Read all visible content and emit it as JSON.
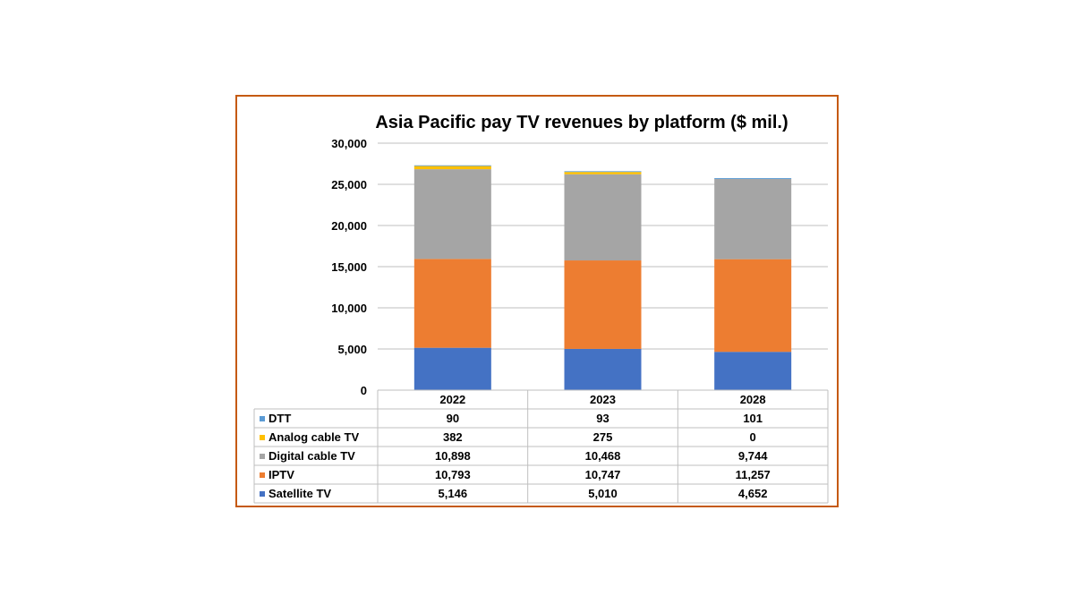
{
  "chart_data": {
    "type": "bar",
    "stacked": true,
    "title": "Asia Pacific pay TV revenues by platform ($ mil.)",
    "categories": [
      "2022",
      "2023",
      "2028"
    ],
    "y_ticks": [
      "30,000",
      "25,000",
      "20,000",
      "15,000",
      "10,000",
      "5,000",
      "0"
    ],
    "ylim": [
      0,
      30000
    ],
    "grid": true,
    "legend": "data-table",
    "series": [
      {
        "name": "Satellite TV",
        "color": "#4472c4",
        "values": [
          5146,
          5010,
          4652
        ],
        "labels": [
          "5,146",
          "5,010",
          "4,652"
        ]
      },
      {
        "name": "IPTV",
        "color": "#ed7d31",
        "values": [
          10793,
          10747,
          11257
        ],
        "labels": [
          "10,793",
          "10,747",
          "11,257"
        ]
      },
      {
        "name": "Digital cable TV",
        "color": "#a5a5a5",
        "values": [
          10898,
          10468,
          9744
        ],
        "labels": [
          "10,898",
          "10,468",
          "9,744"
        ]
      },
      {
        "name": "Analog cable TV",
        "color": "#ffc000",
        "values": [
          382,
          275,
          0
        ],
        "labels": [
          "382",
          "275",
          "0"
        ]
      },
      {
        "name": "DTT",
        "color": "#5b9bd5",
        "values": [
          90,
          93,
          101
        ],
        "labels": [
          "90",
          "93",
          "101"
        ]
      }
    ],
    "table_row_order": [
      "DTT",
      "Analog cable TV",
      "Digital cable TV",
      "IPTV",
      "Satellite TV"
    ]
  }
}
